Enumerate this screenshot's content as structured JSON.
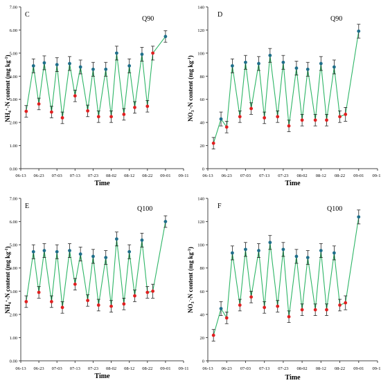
{
  "chart_data": [
    {
      "type": "line",
      "panel_label": "C",
      "annotation": "Q90",
      "xlabel": "Time",
      "ylabel_parts": [
        "NH",
        "4",
        "+",
        "-N content (mg kg",
        "-1",
        ")"
      ],
      "ylim": [
        0,
        7
      ],
      "yticks": [
        "0.00",
        "1.00",
        "2.00",
        "3.00",
        "4.00",
        "5.00",
        "6.00",
        "7.00"
      ],
      "xticks": [
        "06-13",
        "06-23",
        "07-03",
        "07-13",
        "07-23",
        "08-02",
        "08-12",
        "08-22",
        "09-01",
        "09-11"
      ],
      "x": [
        "06-16",
        "06-20",
        "06-23",
        "06-26",
        "06-30",
        "07-03",
        "07-06",
        "07-10",
        "07-13",
        "07-16",
        "07-20",
        "07-23",
        "07-26",
        "07-30",
        "08-02",
        "08-05",
        "08-09",
        "08-12",
        "08-15",
        "08-19",
        "08-22",
        "08-25",
        "09-01"
      ],
      "series": [
        {
          "values": [
            2.48,
            4.45,
            2.8,
            4.58,
            2.45,
            4.5,
            2.2,
            4.55,
            3.15,
            4.4,
            2.5,
            4.3,
            2.25,
            4.3,
            2.25,
            5.0,
            2.35,
            4.45,
            2.65,
            4.95,
            2.7,
            5.0,
            5.72
          ],
          "errors": [
            0.25,
            0.3,
            0.25,
            0.3,
            0.25,
            0.3,
            0.25,
            0.3,
            0.25,
            0.3,
            0.25,
            0.3,
            0.25,
            0.3,
            0.25,
            0.3,
            0.25,
            0.3,
            0.25,
            0.3,
            0.25,
            0.3,
            0.25
          ]
        }
      ]
    },
    {
      "type": "line",
      "panel_label": "D",
      "annotation": "Q90",
      "xlabel": "Time",
      "ylabel_parts": [
        "NO",
        "3",
        "-",
        "-N content (mg kg",
        "-1",
        ")"
      ],
      "ylim": [
        0,
        140
      ],
      "yticks": [
        "0",
        "20",
        "40",
        "60",
        "80",
        "100",
        "120",
        "140"
      ],
      "xticks": [
        "06-13",
        "06-23",
        "07-03",
        "07-13",
        "07-23",
        "08-02",
        "08-12",
        "08-22",
        "09-01",
        "09-11"
      ],
      "x": [
        "06-16",
        "06-20",
        "06-23",
        "06-26",
        "06-30",
        "07-03",
        "07-06",
        "07-10",
        "07-13",
        "07-16",
        "07-20",
        "07-23",
        "07-26",
        "07-30",
        "08-02",
        "08-05",
        "08-09",
        "08-12",
        "08-15",
        "08-19",
        "08-22",
        "08-25",
        "09-01"
      ],
      "series": [
        {
          "values": [
            22,
            43,
            36,
            89,
            45,
            92,
            52,
            91,
            44,
            98,
            45,
            92,
            37,
            87,
            42,
            86,
            42,
            91,
            42,
            88,
            45,
            47,
            119
          ],
          "errors": [
            5,
            6,
            5,
            6,
            5,
            6,
            5,
            6,
            5,
            6,
            5,
            6,
            5,
            6,
            5,
            6,
            5,
            6,
            5,
            6,
            5,
            6,
            6
          ]
        }
      ]
    },
    {
      "type": "line",
      "panel_label": "E",
      "annotation": "Q100",
      "xlabel": "Time",
      "ylabel_parts": [
        "NH",
        "4",
        "+",
        "-N content (mg kg",
        "-1",
        ")"
      ],
      "ylim": [
        0,
        7
      ],
      "yticks": [
        "0.00",
        "1.00",
        "2.00",
        "3.00",
        "4.00",
        "5.00",
        "6.00",
        "7.00"
      ],
      "xticks": [
        "06-13",
        "06-23",
        "07-03",
        "07-13",
        "07-23",
        "08-02",
        "08-12",
        "08-22",
        "09-01",
        "09-11"
      ],
      "x": [
        "06-16",
        "06-20",
        "06-23",
        "06-26",
        "06-30",
        "07-03",
        "07-06",
        "07-10",
        "07-13",
        "07-16",
        "07-20",
        "07-23",
        "07-26",
        "07-30",
        "08-02",
        "08-05",
        "08-09",
        "08-12",
        "08-15",
        "08-19",
        "08-22",
        "08-25",
        "09-01"
      ],
      "series": [
        {
          "values": [
            2.55,
            4.7,
            2.95,
            4.75,
            2.55,
            4.7,
            2.3,
            4.75,
            3.3,
            4.6,
            2.6,
            4.5,
            2.4,
            4.45,
            2.35,
            5.25,
            2.45,
            4.7,
            2.8,
            5.2,
            2.95,
            3.0,
            6.0
          ],
          "errors": [
            0.25,
            0.3,
            0.25,
            0.3,
            0.25,
            0.3,
            0.25,
            0.3,
            0.25,
            0.3,
            0.25,
            0.3,
            0.25,
            0.3,
            0.25,
            0.3,
            0.25,
            0.3,
            0.25,
            0.3,
            0.25,
            0.3,
            0.25
          ]
        }
      ]
    },
    {
      "type": "line",
      "panel_label": "F",
      "annotation": "Q100",
      "xlabel": "Time",
      "ylabel_parts": [
        "NO",
        "3",
        "-",
        "-N content (mg kg",
        "-1",
        ")"
      ],
      "ylim": [
        0,
        140
      ],
      "yticks": [
        "0",
        "20",
        "40",
        "60",
        "80",
        "100",
        "120",
        "140"
      ],
      "xticks": [
        "06-13",
        "06-23",
        "07-03",
        "07-13",
        "07-23",
        "08-02",
        "08-12",
        "08-22",
        "09-01",
        "09-11"
      ],
      "x": [
        "06-16",
        "06-20",
        "06-23",
        "06-26",
        "06-30",
        "07-03",
        "07-06",
        "07-10",
        "07-13",
        "07-16",
        "07-20",
        "07-23",
        "07-26",
        "07-30",
        "08-02",
        "08-05",
        "08-09",
        "08-12",
        "08-15",
        "08-19",
        "08-22",
        "08-25",
        "09-01"
      ],
      "series": [
        {
          "values": [
            22,
            45,
            37,
            93,
            48,
            96,
            55,
            95,
            46,
            102,
            47,
            96,
            38,
            90,
            44,
            89,
            44,
            95,
            44,
            93,
            48,
            50,
            124
          ],
          "errors": [
            5,
            6,
            5,
            6,
            5,
            6,
            5,
            6,
            5,
            6,
            5,
            6,
            5,
            6,
            5,
            6,
            5,
            6,
            5,
            6,
            5,
            6,
            6
          ]
        }
      ]
    }
  ],
  "colors": {
    "line": "#2db566",
    "high_marker": "#1f6f8b",
    "low_marker": "#e02020",
    "error_bar": "#222222",
    "axis": "#444444",
    "text": "#000000"
  }
}
